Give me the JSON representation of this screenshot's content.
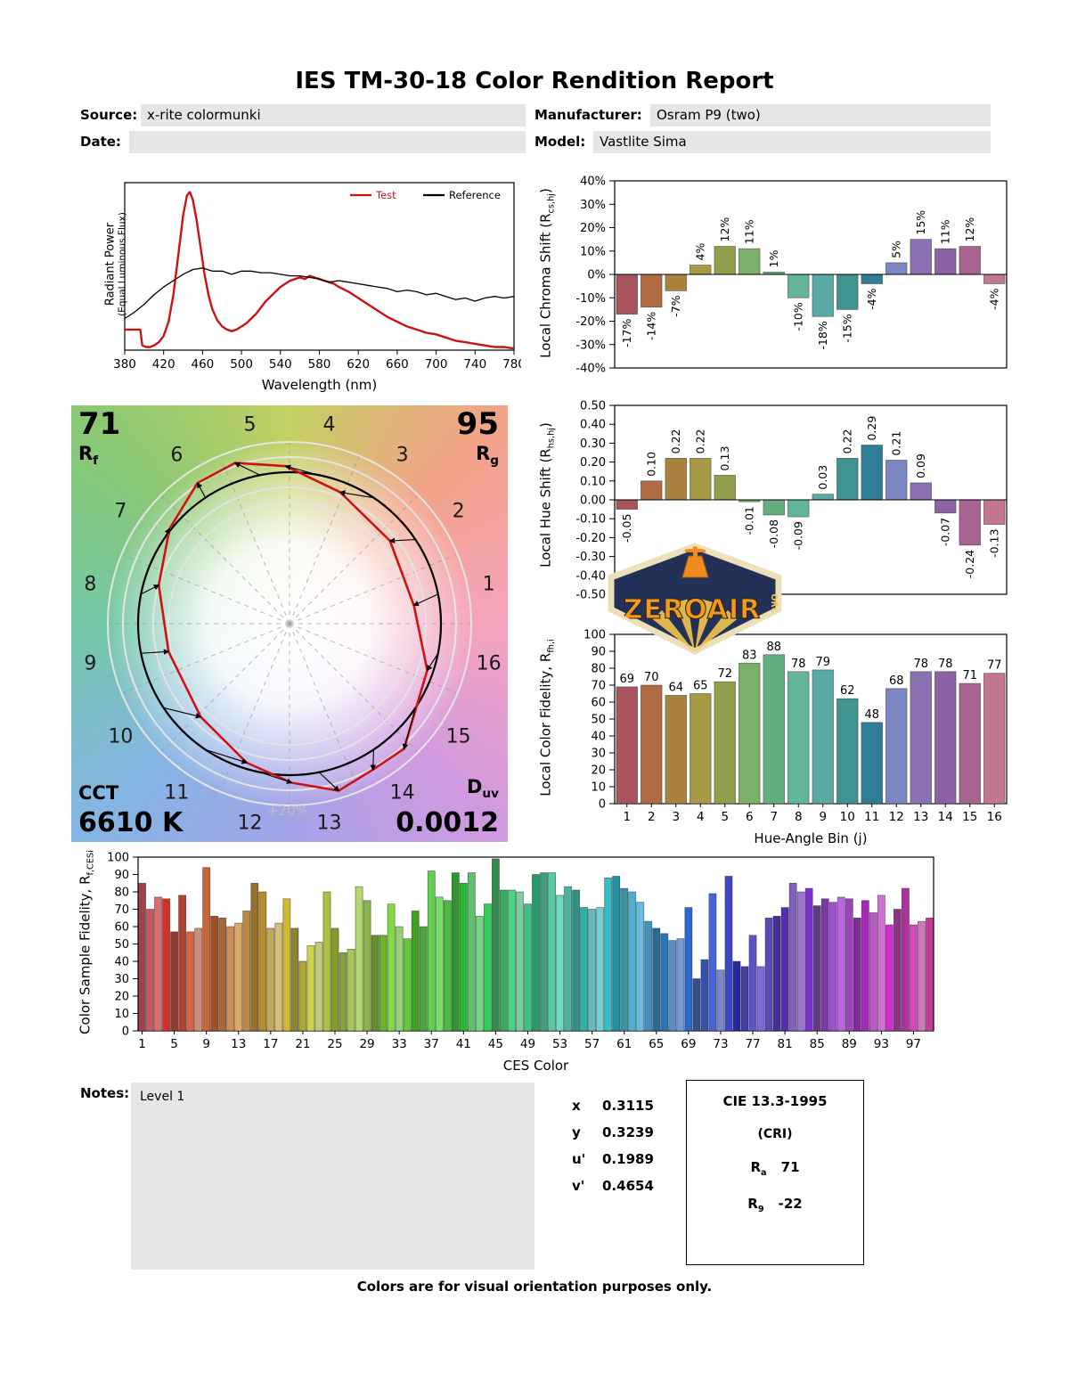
{
  "report": {
    "title": "IES TM-30-18 Color Rendition Report",
    "footer": "Colors are for visual orientation purposes only.",
    "header": {
      "source_label": "Source:",
      "source_value": "x-rite colormunki",
      "date_label": "Date:",
      "date_value": "",
      "manufacturer_label": "Manufacturer:",
      "manufacturer_value": "Osram P9 (two)",
      "model_label": "Model:",
      "model_value": "Vastlite Sima"
    },
    "notes": {
      "label": "Notes:",
      "value": "Level 1"
    }
  },
  "axis_labels": {
    "spd": {
      "line1": "Radiant Power",
      "line2": "(Equal Luminous Flux)"
    },
    "chroma": {
      "pre": "Local Chroma Shift (R",
      "sub": "cs,hj",
      "post": ")"
    },
    "hue": {
      "pre": "Local Hue Shift (R",
      "sub": "hs,hj",
      "post": ")"
    },
    "fidelity": {
      "pre": "Local Color Fidelity, R",
      "sub": "fh,i",
      "post": ""
    },
    "ces": {
      "pre": "Color Sample Fidelity, R",
      "sub": "f,CESi",
      "post": ""
    }
  },
  "cvg": {
    "rf_value": "71",
    "rf_pre": "R",
    "rf_sub": "f",
    "rg_value": "95",
    "rg_pre": "R",
    "rg_sub": "g",
    "cct_label": "CCT",
    "cct_value": "6610 K",
    "duv_pre": "D",
    "duv_sub": "uv",
    "duv_value": "0.0012",
    "plus20_label": "+20%",
    "bins": [
      "1",
      "2",
      "3",
      "4",
      "5",
      "6",
      "7",
      "8",
      "9",
      "10",
      "11",
      "12",
      "13",
      "14",
      "15",
      "16"
    ]
  },
  "chromaticity": {
    "rows": [
      {
        "label": "x",
        "value": "0.3115"
      },
      {
        "label": "y",
        "value": "0.3239"
      },
      {
        "label": "u'",
        "value": "0.1989"
      },
      {
        "label": "v'",
        "value": "0.4654"
      }
    ]
  },
  "cie": {
    "title": "CIE 13.3-1995",
    "subtitle": "(CRI)",
    "ra_pre": "R",
    "ra_sub": "a",
    "ra_value": "71",
    "r9_pre": "R",
    "r9_sub": "9",
    "r9_value": "-22"
  },
  "logo": {
    "name": "ZEROAIR",
    "tld": "ORG"
  },
  "hue_bin_colors": [
    "#a8545c",
    "#b06b44",
    "#a8823e",
    "#a79a47",
    "#8f9f4b",
    "#7bb06a",
    "#64ad7f",
    "#63b49b",
    "#58aaa2",
    "#41938f",
    "#2f7e95",
    "#7b87c2",
    "#8b72b2",
    "#8d63a5",
    "#a9638f",
    "#c17791"
  ],
  "chart_data": [
    {
      "id": "spd",
      "type": "line",
      "xlabel": "Wavelength (nm)",
      "xlim": [
        380,
        780
      ],
      "ylim": [
        0,
        1.06
      ],
      "xticks": [
        380,
        420,
        460,
        500,
        540,
        580,
        620,
        660,
        700,
        740,
        780
      ],
      "legend": [
        "Test",
        "Reference"
      ],
      "series": [
        {
          "name": "Test",
          "color": "#cc1111",
          "width": 2.4,
          "x": [
            380,
            396,
            398,
            402,
            406,
            410,
            415,
            420,
            425,
            430,
            435,
            440,
            444,
            447,
            450,
            454,
            458,
            462,
            466,
            470,
            475,
            480,
            485,
            490,
            495,
            500,
            505,
            510,
            515,
            520,
            525,
            530,
            535,
            540,
            545,
            550,
            555,
            560,
            565,
            570,
            575,
            580,
            585,
            590,
            595,
            600,
            610,
            620,
            630,
            640,
            650,
            660,
            670,
            680,
            690,
            700,
            710,
            720,
            730,
            740,
            750,
            760,
            770,
            780
          ],
          "y": [
            0.13,
            0.13,
            0.03,
            0.02,
            0.02,
            0.03,
            0.05,
            0.09,
            0.18,
            0.35,
            0.6,
            0.85,
            0.98,
            1.0,
            0.95,
            0.82,
            0.65,
            0.48,
            0.35,
            0.26,
            0.19,
            0.15,
            0.13,
            0.12,
            0.13,
            0.15,
            0.17,
            0.2,
            0.23,
            0.27,
            0.31,
            0.34,
            0.37,
            0.4,
            0.42,
            0.44,
            0.45,
            0.46,
            0.45,
            0.47,
            0.46,
            0.45,
            0.44,
            0.43,
            0.42,
            0.4,
            0.37,
            0.33,
            0.29,
            0.25,
            0.21,
            0.18,
            0.15,
            0.13,
            0.11,
            0.1,
            0.08,
            0.06,
            0.05,
            0.04,
            0.03,
            0.02,
            0.02,
            0.01
          ]
        },
        {
          "name": "Reference",
          "color": "#000000",
          "width": 1.3,
          "x": [
            380,
            390,
            400,
            410,
            420,
            430,
            440,
            450,
            460,
            470,
            480,
            490,
            500,
            510,
            520,
            530,
            540,
            550,
            560,
            570,
            580,
            590,
            600,
            610,
            620,
            630,
            640,
            650,
            660,
            670,
            680,
            690,
            700,
            710,
            720,
            730,
            740,
            750,
            760,
            770,
            780
          ],
          "y": [
            0.2,
            0.24,
            0.29,
            0.35,
            0.4,
            0.44,
            0.48,
            0.51,
            0.52,
            0.5,
            0.5,
            0.48,
            0.5,
            0.5,
            0.49,
            0.49,
            0.48,
            0.47,
            0.47,
            0.46,
            0.45,
            0.43,
            0.44,
            0.43,
            0.42,
            0.41,
            0.4,
            0.39,
            0.37,
            0.38,
            0.37,
            0.35,
            0.36,
            0.34,
            0.32,
            0.33,
            0.31,
            0.33,
            0.34,
            0.33,
            0.34
          ]
        }
      ]
    },
    {
      "id": "chroma_shift",
      "type": "bar",
      "ylim": [
        -40,
        40
      ],
      "yticks": [
        40,
        30,
        20,
        10,
        0,
        -10,
        -20,
        -30,
        -40
      ],
      "ytick_labels": [
        "40%",
        "30%",
        "20%",
        "10%",
        "0%",
        "-10%",
        "-20%",
        "-30%",
        "-40%"
      ],
      "values": [
        -17,
        -14,
        -7,
        4,
        12,
        11,
        1,
        -10,
        -18,
        -15,
        -4,
        5,
        15,
        11,
        12,
        -4
      ],
      "labels": [
        "-17%",
        "-14%",
        "-7%",
        "4%",
        "12%",
        "11%",
        "1%",
        "-10%",
        "-18%",
        "-15%",
        "-4%",
        "5%",
        "15%",
        "11%",
        "12%",
        "-4%"
      ],
      "label_rotate": true
    },
    {
      "id": "hue_shift",
      "type": "bar",
      "ylim": [
        -0.5,
        0.5
      ],
      "yticks": [
        0.5,
        0.4,
        0.3,
        0.2,
        0.1,
        0,
        -0.1,
        -0.2,
        -0.3,
        -0.4,
        -0.5
      ],
      "ytick_labels": [
        "0.50",
        "0.40",
        "0.30",
        "0.20",
        "0.10",
        "0.00",
        "-0.10",
        "-0.20",
        "-0.30",
        "-0.40",
        "-0.50"
      ],
      "values": [
        -0.05,
        0.1,
        0.22,
        0.22,
        0.13,
        -0.01,
        -0.08,
        -0.09,
        0.03,
        0.22,
        0.29,
        0.21,
        0.09,
        -0.07,
        -0.24,
        -0.13
      ],
      "labels": [
        "-0.05",
        "0.10",
        "0.22",
        "0.22",
        "0.13",
        "-0.01",
        "-0.08",
        "-0.09",
        "0.03",
        "0.22",
        "0.29",
        "0.21",
        "0.09",
        "-0.07",
        "-0.24",
        "-0.13"
      ],
      "label_rotate": true
    },
    {
      "id": "local_fidelity",
      "type": "bar",
      "xlabel": "Hue-Angle Bin (j)",
      "ylim": [
        0,
        100
      ],
      "yticks": [
        100,
        90,
        80,
        70,
        60,
        50,
        40,
        30,
        20,
        10,
        0
      ],
      "ytick_labels": [
        "100",
        "90",
        "80",
        "70",
        "60",
        "50",
        "40",
        "30",
        "20",
        "10",
        "0"
      ],
      "values": [
        69,
        70,
        64,
        65,
        72,
        83,
        88,
        78,
        79,
        62,
        48,
        68,
        78,
        78,
        71,
        77
      ],
      "labels": [
        "69",
        "70",
        "64",
        "65",
        "72",
        "83",
        "88",
        "78",
        "79",
        "62",
        "48",
        "68",
        "78",
        "78",
        "71",
        "77"
      ],
      "label_rotate": false,
      "xtick_positions": [
        1,
        2,
        3,
        4,
        5,
        6,
        7,
        8,
        9,
        10,
        11,
        12,
        13,
        14,
        15,
        16
      ],
      "xtick_labels": [
        "1",
        "2",
        "3",
        "4",
        "5",
        "6",
        "7",
        "8",
        "9",
        "10",
        "11",
        "12",
        "13",
        "14",
        "15",
        "16"
      ]
    },
    {
      "id": "ces",
      "type": "bar",
      "xlabel": "CES Color",
      "ylim": [
        0,
        100
      ],
      "yticks": [
        100,
        90,
        80,
        70,
        60,
        50,
        40,
        30,
        20,
        10,
        0
      ],
      "ytick_labels": [
        "100",
        "90",
        "80",
        "70",
        "60",
        "50",
        "40",
        "30",
        "20",
        "10",
        "0"
      ],
      "values": [
        85,
        70,
        77,
        76,
        57,
        78,
        57,
        59,
        94,
        66,
        65,
        60,
        62,
        69,
        85,
        80,
        59,
        62,
        76,
        59,
        40,
        49,
        51,
        80,
        59,
        45,
        47,
        83,
        75,
        55,
        55,
        73,
        60,
        53,
        69,
        60,
        92,
        77,
        75,
        91,
        85,
        91,
        66,
        73,
        99,
        81,
        81,
        80,
        73,
        90,
        91,
        91,
        78,
        83,
        81,
        71,
        70,
        71,
        88,
        89,
        82,
        80,
        74,
        63,
        59,
        56,
        52,
        53,
        71,
        30,
        41,
        79,
        35,
        89,
        40,
        37,
        55,
        37,
        65,
        66,
        71,
        85,
        80,
        82,
        72,
        76,
        74,
        77,
        76,
        65,
        75,
        68,
        78,
        61,
        70,
        82,
        61,
        63,
        65
      ],
      "xtick_positions": [
        1,
        5,
        9,
        13,
        17,
        21,
        25,
        29,
        33,
        37,
        41,
        45,
        49,
        53,
        57,
        61,
        65,
        69,
        73,
        77,
        81,
        85,
        89,
        93,
        97
      ],
      "xtick_labels": [
        "1",
        "5",
        "9",
        "13",
        "17",
        "21",
        "25",
        "29",
        "33",
        "37",
        "41",
        "45",
        "49",
        "53",
        "57",
        "61",
        "65",
        "69",
        "73",
        "77",
        "81",
        "85",
        "89",
        "93",
        "97"
      ]
    }
  ]
}
